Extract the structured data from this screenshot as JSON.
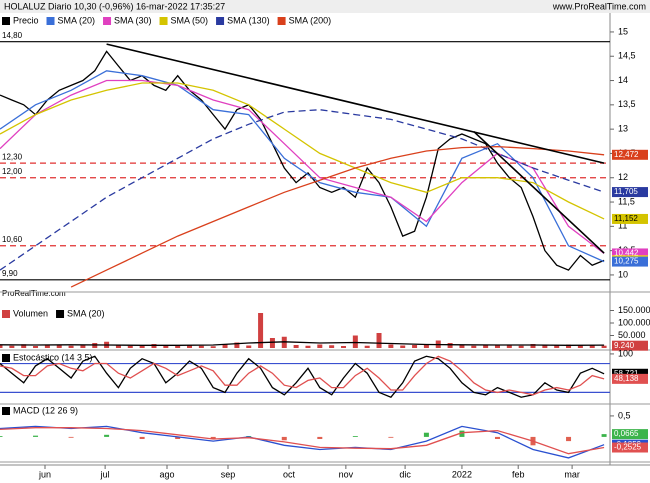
{
  "header": {
    "title": "HOLALUZ Diario 10,30 (-0,96%) 16-mar-2022 17:35:27",
    "site": "www.ProRealTime.com",
    "watermark": "ProRealTime.com"
  },
  "chart_data": [
    {
      "type": "line",
      "xlim": [
        0,
        206
      ],
      "ylim": [
        9.69,
        15.04
      ],
      "yticks": [
        15,
        {
          "value": 14.5,
          "label": "14,5"
        },
        14,
        {
          "value": 13.5,
          "label": "13,5"
        },
        13,
        {
          "value": 12.5,
          "label": "12,5"
        },
        12,
        {
          "value": 11.5,
          "label": "11,5"
        },
        11,
        {
          "value": 10.5,
          "label": "10,5"
        },
        10
      ],
      "hlines": [
        {
          "value": 14.8,
          "label": "14,80",
          "color": "#000000",
          "dash": false
        },
        {
          "value": 12.3,
          "label": "12,30",
          "color": "#e03030",
          "dash": true
        },
        {
          "value": 12.0,
          "label": "12,00",
          "color": "#e03030",
          "dash": true
        },
        {
          "value": 10.6,
          "label": "10,60",
          "color": "#e03030",
          "dash": true
        },
        {
          "value": 9.9,
          "label": "9,90",
          "color": "#000000",
          "dash": false
        }
      ],
      "trendlines": [
        {
          "x": [
            36,
            204
          ],
          "values": [
            14.75,
            12.3
          ]
        },
        {
          "x": [
            160,
            204
          ],
          "values": [
            12.95,
            10.45
          ]
        }
      ],
      "series": [
        {
          "name": "Precio",
          "color": "#000000",
          "x": [
            0,
            4,
            8,
            12,
            16,
            20,
            24,
            28,
            32,
            36,
            40,
            44,
            48,
            52,
            56,
            60,
            64,
            68,
            72,
            76,
            80,
            84,
            88,
            92,
            96,
            100,
            104,
            108,
            112,
            116,
            120,
            124,
            128,
            132,
            136,
            140,
            144,
            148,
            152,
            156,
            160,
            164,
            168,
            172,
            176,
            180,
            184,
            188,
            192,
            196,
            200,
            204
          ],
          "values": [
            13.7,
            13.6,
            13.5,
            13.3,
            13.6,
            13.8,
            13.9,
            14.0,
            14.2,
            14.6,
            14.3,
            14.0,
            14.1,
            13.9,
            13.8,
            14.1,
            13.8,
            13.6,
            13.3,
            13.0,
            13.4,
            13.5,
            13.2,
            12.7,
            12.2,
            11.9,
            12.1,
            11.8,
            11.7,
            11.8,
            11.6,
            12.2,
            11.9,
            11.4,
            10.8,
            10.9,
            11.6,
            12.6,
            12.8,
            12.9,
            12.8,
            12.7,
            12.3,
            12.0,
            11.8,
            11.2,
            10.5,
            10.2,
            10.1,
            10.4,
            10.2,
            10.3
          ]
        },
        {
          "name": "SMA (20)",
          "color": "#3a6fd8",
          "x": [
            0,
            12,
            24,
            36,
            48,
            60,
            72,
            84,
            96,
            108,
            120,
            132,
            144,
            156,
            168,
            180,
            192,
            204
          ],
          "values": [
            13.0,
            13.5,
            13.8,
            14.2,
            14.1,
            13.9,
            13.4,
            13.3,
            12.4,
            11.9,
            11.7,
            11.6,
            11.0,
            12.4,
            12.7,
            12.0,
            10.6,
            10.275
          ]
        },
        {
          "name": "SMA (30)",
          "color": "#e040c0",
          "x": [
            0,
            12,
            24,
            36,
            48,
            60,
            72,
            84,
            96,
            108,
            120,
            132,
            144,
            156,
            168,
            180,
            192,
            204
          ],
          "values": [
            12.6,
            13.3,
            13.7,
            14.0,
            14.0,
            13.9,
            13.6,
            13.4,
            12.7,
            12.0,
            11.8,
            11.6,
            11.1,
            11.9,
            12.5,
            12.2,
            11.0,
            10.442
          ]
        },
        {
          "name": "SMA (50)",
          "color": "#d4c400",
          "x": [
            0,
            12,
            24,
            36,
            48,
            60,
            72,
            84,
            96,
            108,
            120,
            132,
            144,
            156,
            168,
            180,
            192,
            204
          ],
          "values": [
            12.9,
            13.3,
            13.6,
            13.8,
            13.95,
            13.95,
            13.8,
            13.5,
            13.0,
            12.5,
            12.2,
            11.9,
            11.7,
            12.0,
            12.0,
            11.9,
            11.5,
            11.152
          ]
        },
        {
          "name": "SMA (130)",
          "color": "#2a3aa0",
          "dash": true,
          "x": [
            0,
            12,
            24,
            36,
            48,
            60,
            72,
            84,
            96,
            108,
            120,
            132,
            144,
            156,
            168,
            180,
            192,
            204
          ],
          "values": [
            10.1,
            10.6,
            11.1,
            11.6,
            12.0,
            12.4,
            12.8,
            13.1,
            13.35,
            13.4,
            13.3,
            13.2,
            13.0,
            12.8,
            12.5,
            12.2,
            11.95,
            11.705
          ]
        },
        {
          "name": "SMA (200)",
          "color": "#d9401c",
          "x": [
            24,
            36,
            48,
            60,
            72,
            84,
            96,
            108,
            120,
            132,
            144,
            156,
            168,
            180,
            192,
            204
          ],
          "values": [
            9.75,
            10.1,
            10.45,
            10.8,
            11.1,
            11.4,
            11.7,
            11.95,
            12.2,
            12.4,
            12.55,
            12.62,
            12.64,
            12.6,
            12.55,
            12.472
          ]
        }
      ],
      "last_labels": [
        {
          "value": 12.472,
          "label": "12,472",
          "color": "#d9401c"
        },
        {
          "value": 11.705,
          "label": "11,705",
          "color": "#2a3aa0"
        },
        {
          "value": 11.152,
          "label": "11,152",
          "color": "#d4c400"
        },
        {
          "value": 10.442,
          "label": "10,442",
          "color": "#e040c0"
        },
        {
          "value": 10.3,
          "label": "10,30",
          "color": "#f5e400"
        },
        {
          "value": 10.275,
          "label": "10,275",
          "color": "#3a6fd8"
        }
      ]
    },
    {
      "type": "bar",
      "xlim": [
        0,
        206
      ],
      "ylim": [
        0,
        160000
      ],
      "yticks": [
        {
          "value": 150000,
          "label": "150.000"
        },
        {
          "value": 100000,
          "label": "100.000"
        },
        {
          "value": 50000,
          "label": "50.000"
        }
      ],
      "series": [
        {
          "name": "Volumen",
          "kind": "bar",
          "color": "#d04040",
          "x": [
            0,
            4,
            8,
            12,
            16,
            20,
            24,
            28,
            32,
            36,
            40,
            44,
            48,
            52,
            56,
            60,
            64,
            68,
            72,
            76,
            80,
            84,
            88,
            92,
            96,
            100,
            104,
            108,
            112,
            116,
            120,
            124,
            128,
            132,
            136,
            140,
            144,
            148,
            152,
            156,
            160,
            164,
            168,
            172,
            176,
            180,
            184,
            188,
            192,
            196,
            200,
            204
          ],
          "values": [
            12000,
            9000,
            15000,
            8000,
            10000,
            14000,
            9000,
            11000,
            20000,
            25000,
            14000,
            9000,
            12000,
            16000,
            8000,
            10000,
            12000,
            9000,
            7000,
            15000,
            22000,
            10000,
            140000,
            40000,
            45000,
            12000,
            9000,
            14000,
            11000,
            8000,
            50000,
            9000,
            60000,
            14000,
            10000,
            12000,
            15000,
            30000,
            20000,
            11000,
            9000,
            12000,
            10000,
            14000,
            9000,
            16000,
            12000,
            10000,
            14000,
            11000,
            12000,
            9240
          ]
        },
        {
          "name": "SMA (20)",
          "color": "#000000",
          "x": [
            0,
            12,
            24,
            36,
            48,
            60,
            72,
            84,
            96,
            108,
            120,
            132,
            144,
            156,
            168,
            180,
            192,
            204
          ],
          "values": [
            13000,
            12000,
            13000,
            12000,
            11000,
            11000,
            12000,
            20000,
            25000,
            20000,
            22000,
            18000,
            14000,
            13000,
            12000,
            12000,
            11000,
            11500
          ]
        }
      ],
      "last_labels": [
        {
          "value": 9240,
          "label": "9.240",
          "color": "#d04040"
        }
      ]
    },
    {
      "type": "line",
      "title": "Estocástico (14 3 5)",
      "xlim": [
        0,
        206
      ],
      "ylim": [
        0,
        104
      ],
      "yticks": [
        100
      ],
      "hlines": [
        {
          "value": 80,
          "color": "#3a50d0",
          "dash": false
        },
        {
          "value": 20,
          "color": "#3a50d0",
          "dash": false
        }
      ],
      "series": [
        {
          "color": "#000000",
          "x": [
            0,
            4,
            8,
            12,
            16,
            20,
            24,
            28,
            32,
            36,
            40,
            44,
            48,
            52,
            56,
            60,
            64,
            68,
            72,
            76,
            80,
            84,
            88,
            92,
            96,
            100,
            104,
            108,
            112,
            116,
            120,
            124,
            128,
            132,
            136,
            140,
            144,
            148,
            152,
            156,
            160,
            164,
            168,
            172,
            176,
            180,
            184,
            188,
            192,
            196,
            200,
            204
          ],
          "values": [
            80,
            60,
            40,
            75,
            90,
            70,
            50,
            85,
            95,
            60,
            30,
            70,
            90,
            80,
            40,
            60,
            85,
            70,
            30,
            20,
            60,
            90,
            70,
            30,
            15,
            40,
            70,
            30,
            15,
            50,
            80,
            60,
            20,
            10,
            40,
            85,
            95,
            90,
            70,
            40,
            20,
            15,
            30,
            20,
            10,
            15,
            40,
            25,
            20,
            60,
            70,
            58.721
          ]
        },
        {
          "color": "#e05050",
          "x": [
            0,
            4,
            8,
            12,
            16,
            20,
            24,
            28,
            32,
            36,
            40,
            44,
            48,
            52,
            56,
            60,
            64,
            68,
            72,
            76,
            80,
            84,
            88,
            92,
            96,
            100,
            104,
            108,
            112,
            116,
            120,
            124,
            128,
            132,
            136,
            140,
            144,
            148,
            152,
            156,
            160,
            164,
            168,
            172,
            176,
            180,
            184,
            188,
            192,
            196,
            200,
            204
          ],
          "values": [
            75,
            70,
            55,
            55,
            75,
            80,
            70,
            65,
            80,
            80,
            60,
            50,
            65,
            80,
            70,
            55,
            65,
            75,
            65,
            35,
            35,
            60,
            75,
            60,
            35,
            30,
            45,
            50,
            30,
            30,
            55,
            70,
            50,
            25,
            25,
            55,
            80,
            95,
            85,
            65,
            40,
            25,
            20,
            25,
            20,
            15,
            25,
            30,
            25,
            35,
            55,
            48.138
          ]
        }
      ],
      "last_labels": [
        {
          "value": 58.721,
          "label": "58,721",
          "color": "#000000"
        },
        {
          "value": 48.138,
          "label": "48,138",
          "color": "#e05050"
        }
      ]
    },
    {
      "type": "line",
      "title": "MACD (12 26 9)",
      "xlim": [
        0,
        206
      ],
      "ylim": [
        -0.55,
        0.76
      ],
      "yticks": [
        {
          "value": 0.5,
          "label": "0,5"
        }
      ],
      "xticks": [
        {
          "value": 15.2,
          "label": "jun"
        },
        {
          "value": 35.5,
          "label": "jul"
        },
        {
          "value": 56.4,
          "label": "ago"
        },
        {
          "value": 77,
          "label": "sep"
        },
        {
          "value": 97.6,
          "label": "oct"
        },
        {
          "value": 116.8,
          "label": "nov"
        },
        {
          "value": 136.8,
          "label": "dic"
        },
        {
          "value": 156,
          "label": "2022"
        },
        {
          "value": 175,
          "label": "feb"
        },
        {
          "value": 193.2,
          "label": "mar"
        }
      ],
      "series": [
        {
          "kind": "bar",
          "color": "#3cb44b",
          "negative_color": "#e06050",
          "x": [
            0,
            12,
            24,
            36,
            48,
            60,
            72,
            84,
            96,
            108,
            120,
            132,
            144,
            156,
            168,
            180,
            192,
            204
          ],
          "values": [
            0.02,
            0.03,
            -0.02,
            0.05,
            -0.05,
            -0.05,
            -0.05,
            0.02,
            -0.08,
            -0.05,
            0.02,
            -0.02,
            0.1,
            0.15,
            -0.05,
            -0.2,
            -0.1,
            0.0665
          ]
        },
        {
          "color": "#2a50d0",
          "x": [
            0,
            12,
            24,
            36,
            48,
            60,
            72,
            84,
            96,
            108,
            120,
            132,
            144,
            156,
            168,
            180,
            192,
            204
          ],
          "values": [
            0.2,
            0.25,
            0.2,
            0.25,
            0.1,
            0.0,
            -0.1,
            0.0,
            -0.2,
            -0.3,
            -0.25,
            -0.3,
            -0.1,
            0.25,
            0.1,
            -0.3,
            -0.5,
            -0.1859
          ]
        },
        {
          "color": "#e05050",
          "x": [
            0,
            12,
            24,
            36,
            48,
            60,
            72,
            84,
            96,
            108,
            120,
            132,
            144,
            156,
            168,
            180,
            192,
            204
          ],
          "values": [
            0.18,
            0.22,
            0.22,
            0.2,
            0.15,
            0.05,
            -0.05,
            -0.02,
            -0.12,
            -0.25,
            -0.27,
            -0.28,
            -0.2,
            0.1,
            0.15,
            -0.1,
            -0.4,
            -0.2525
          ]
        }
      ],
      "last_labels": [
        {
          "value": 0.0665,
          "label": "0,0665",
          "color": "#3cb44b"
        },
        {
          "value": -0.1859,
          "label": "-0,1859",
          "color": "#2a50d0"
        },
        {
          "value": -0.2525,
          "label": "-0,2525",
          "color": "#e05050"
        }
      ]
    }
  ]
}
